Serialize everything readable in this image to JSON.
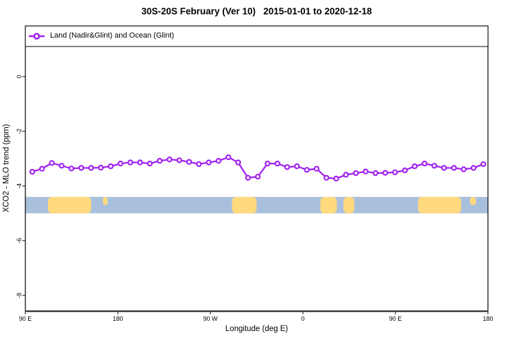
{
  "title": "30S-20S February (Ver 10)   2015-01-01 to 2020-12-18",
  "legend": {
    "label": "Land (Nadir&Glint) and Ocean (Glint)"
  },
  "x_axis": {
    "title": "Longitude (deg E)"
  },
  "y_axis": {
    "title": "XCO2 - MLO trend (ppm)"
  },
  "colors": {
    "series": "#A020F0",
    "ocean": "#a9c0dd",
    "land": "#ffd97e",
    "axis": "#000000",
    "background": "#ffffff"
  },
  "chart_data": {
    "type": "line",
    "title": "30S-20S February (Ver 10)   2015-01-01 to 2020-12-18",
    "xlabel": "Longitude (deg E)",
    "ylabel": "XCO2 - MLO trend (ppm)",
    "xlim": [
      90,
      540
    ],
    "ylim": [
      -8.58,
      1.85
    ],
    "grid": false,
    "legend_position": "top-left-inside-full-width",
    "x_ticks": [
      {
        "value": 90,
        "label": "90 E"
      },
      {
        "value": 180,
        "label": "180"
      },
      {
        "value": 270,
        "label": "90 W"
      },
      {
        "value": 360,
        "label": "0"
      },
      {
        "value": 450,
        "label": "90 E"
      },
      {
        "value": 540,
        "label": "180"
      }
    ],
    "y_ticks": [
      {
        "value": 0,
        "label": "0"
      },
      {
        "value": -2,
        "label": "-2"
      },
      {
        "value": -4,
        "label": "-4"
      },
      {
        "value": -6,
        "label": "-6"
      },
      {
        "value": -8,
        "label": "-8"
      }
    ],
    "map_band": {
      "description": "world coastline strip for latitude band 30S-20S drawn across plot",
      "y_top": -4.4,
      "y_bottom": -5.0,
      "ocean_color": "#a9c0dd",
      "land_color": "#ffd97e",
      "land_patches": [
        {
          "name": "australia",
          "from": 112,
          "to": 154,
          "anchor": "full"
        },
        {
          "name": "new-caledonia",
          "from": 165.5,
          "to": 170,
          "anchor": "top"
        },
        {
          "name": "south-america",
          "from": 291,
          "to": 315,
          "anchor": "full"
        },
        {
          "name": "southern-africa",
          "from": 377,
          "to": 393,
          "anchor": "full"
        },
        {
          "name": "madagascar",
          "from": 399.5,
          "to": 410,
          "anchor": "full"
        },
        {
          "name": "australia-repeat",
          "from": 472,
          "to": 514,
          "anchor": "full"
        },
        {
          "name": "new-caledonia-repeat",
          "from": 522.5,
          "to": 528.5,
          "anchor": "top"
        }
      ]
    },
    "series": [
      {
        "name": "Land (Nadir&Glint) and Ocean (Glint)",
        "color": "#A020F0",
        "marker": "open-circle",
        "x": [
          96.7,
          106.2,
          115.7,
          125.3,
          134.8,
          144.4,
          153.9,
          163.4,
          173.0,
          182.5,
          192.1,
          201.6,
          211.1,
          220.7,
          230.2,
          239.8,
          249.3,
          258.8,
          268.4,
          277.9,
          287.5,
          297.0,
          306.5,
          316.1,
          325.6,
          335.2,
          344.7,
          354.2,
          363.8,
          373.3,
          382.9,
          392.4,
          401.9,
          411.5,
          421.0,
          430.6,
          440.1,
          449.6,
          459.2,
          468.7,
          478.3,
          487.8,
          497.3,
          506.9,
          516.4,
          526.0,
          535.5
        ],
        "values": [
          -3.48,
          -3.37,
          -3.16,
          -3.26,
          -3.36,
          -3.34,
          -3.34,
          -3.33,
          -3.28,
          -3.18,
          -3.14,
          -3.14,
          -3.18,
          -3.08,
          -3.03,
          -3.06,
          -3.12,
          -3.2,
          -3.14,
          -3.08,
          -2.95,
          -3.14,
          -3.7,
          -3.66,
          -3.18,
          -3.18,
          -3.31,
          -3.28,
          -3.41,
          -3.37,
          -3.7,
          -3.73,
          -3.59,
          -3.53,
          -3.47,
          -3.53,
          -3.52,
          -3.5,
          -3.43,
          -3.28,
          -3.18,
          -3.26,
          -3.34,
          -3.34,
          -3.39,
          -3.34,
          -3.2
        ]
      }
    ]
  }
}
